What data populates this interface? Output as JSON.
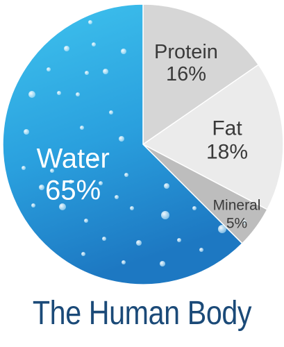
{
  "chart_data": {
    "type": "pie",
    "title": "The Human Body",
    "slices": [
      {
        "label": "Protein",
        "value": 16,
        "value_label": "16%",
        "color": "#d6d6d6"
      },
      {
        "label": "Fat",
        "value": 18,
        "value_label": "18%",
        "color": "#ebebeb"
      },
      {
        "label": "Mineral",
        "value": 5,
        "value_label": "5%",
        "color": "#bdbdbd"
      },
      {
        "label": "Water",
        "value": 65,
        "value_label": "65%",
        "color": "#2a9fdd"
      }
    ],
    "colors": {
      "water_light": "#3fc0ec",
      "water_dark": "#1e7cc4",
      "title_color": "#1b4a78",
      "label_dark": "#3a3a3a"
    }
  }
}
